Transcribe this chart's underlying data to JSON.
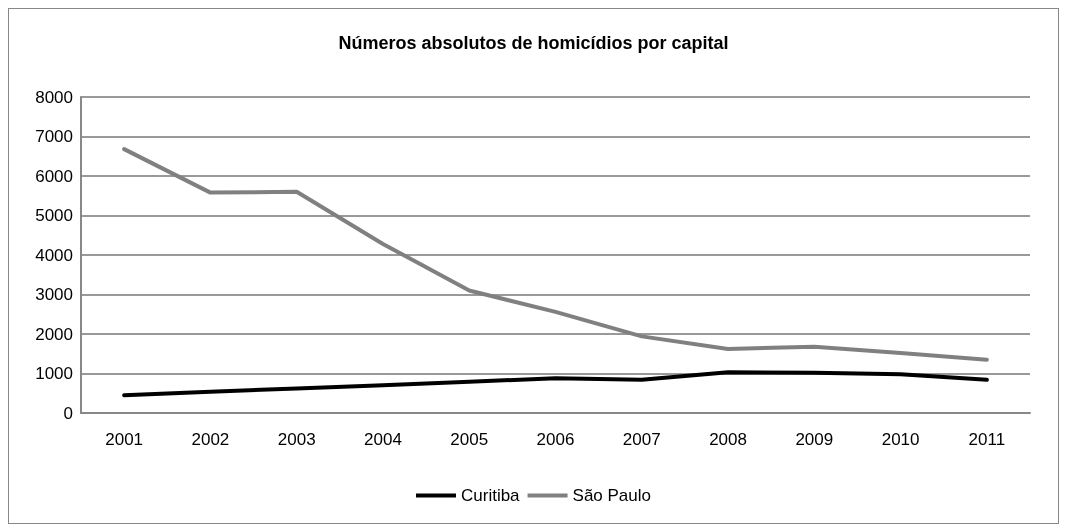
{
  "chart_data": {
    "type": "line",
    "title": "Números absolutos de homicídios por capital",
    "categories": [
      "2001",
      "2002",
      "2003",
      "2004",
      "2005",
      "2006",
      "2007",
      "2008",
      "2009",
      "2010",
      "2011"
    ],
    "series": [
      {
        "name": "Curitiba",
        "color": "#000000",
        "values": [
          450,
          540,
          620,
          700,
          790,
          880,
          840,
          1030,
          1020,
          980,
          840
        ]
      },
      {
        "name": "São Paulo",
        "color": "#808080",
        "values": [
          6680,
          5580,
          5600,
          4280,
          3100,
          2560,
          1940,
          1620,
          1680,
          1520,
          1350
        ]
      }
    ],
    "ylim": [
      0,
      8000
    ],
    "yticks": [
      0,
      1000,
      2000,
      3000,
      4000,
      5000,
      6000,
      7000,
      8000
    ],
    "grid": "y",
    "legend": "bottom",
    "marker": "none",
    "line_style": "solid"
  }
}
